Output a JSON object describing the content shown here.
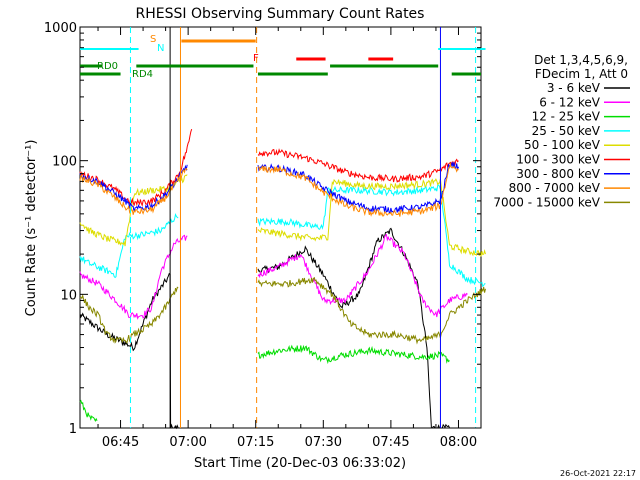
{
  "chart_data": {
    "type": "line",
    "title": "RHESSI Observing Summary Count Rates",
    "xlabel": "Start Time (20-Dec-03 06:33:02)",
    "ylabel": "Count Rate (s⁻¹ detector⁻¹)",
    "y_scale": "log",
    "ylim": [
      1,
      1000
    ],
    "xlim_min": [
      36,
      125
    ],
    "x_ticks": [
      {
        "min": 45,
        "label": "06:45"
      },
      {
        "min": 60,
        "label": "07:00"
      },
      {
        "min": 75,
        "label": "07:15"
      },
      {
        "min": 90,
        "label": "07:30"
      },
      {
        "min": 105,
        "label": "07:45"
      },
      {
        "min": 120,
        "label": "08:00"
      }
    ],
    "y_ticks": [
      {
        "v": 1,
        "label": "1"
      },
      {
        "v": 10,
        "label": "10"
      },
      {
        "v": 100,
        "label": "100"
      },
      {
        "v": 1000,
        "label": "1000"
      }
    ],
    "legend": {
      "header": [
        "Det 1,3,4,5,6,9,",
        "FDecim 1, Att 0"
      ],
      "position": "right"
    },
    "series": [
      {
        "name": "3 - 6 keV",
        "color": "#000000",
        "points": [
          [
            36,
            7
          ],
          [
            42,
            5
          ],
          [
            48,
            4
          ],
          [
            52,
            9
          ],
          [
            56,
            14
          ],
          [
            56.1,
            1
          ],
          [
            58,
            1
          ],
          [
            75.5,
            15
          ],
          [
            80,
            16
          ],
          [
            86,
            22
          ],
          [
            90,
            14
          ],
          [
            94,
            8
          ],
          [
            98,
            10
          ],
          [
            102,
            25
          ],
          [
            105,
            30
          ],
          [
            108,
            20
          ],
          [
            111,
            12
          ],
          [
            113,
            4
          ],
          [
            114,
            1
          ],
          [
            116,
            1
          ],
          [
            118,
            1
          ]
        ]
      },
      {
        "name": "6 - 12 keV",
        "color": "#ff00ff",
        "points": [
          [
            36,
            14
          ],
          [
            40,
            12
          ],
          [
            44,
            9
          ],
          [
            47,
            7
          ],
          [
            50,
            7
          ],
          [
            52,
            8
          ],
          [
            54,
            15
          ],
          [
            57,
            24
          ],
          [
            60,
            27
          ],
          [
            75.5,
            14
          ],
          [
            80,
            16
          ],
          [
            85,
            20
          ],
          [
            90,
            9
          ],
          [
            95,
            9
          ],
          [
            100,
            15
          ],
          [
            104,
            27
          ],
          [
            108,
            20
          ],
          [
            112,
            9
          ],
          [
            115,
            7
          ],
          [
            118,
            9
          ],
          [
            122,
            10
          ]
        ]
      },
      {
        "name": "12 - 25 keV",
        "color": "#00dd00",
        "points": [
          [
            36,
            1.6
          ],
          [
            38,
            1.2
          ],
          [
            40,
            1.1
          ],
          [
            75.5,
            3.5
          ],
          [
            80,
            3.8
          ],
          [
            86,
            4
          ],
          [
            90,
            3.2
          ],
          [
            94,
            3.5
          ],
          [
            100,
            3.8
          ],
          [
            106,
            3.6
          ],
          [
            112,
            3.4
          ],
          [
            116,
            3.5
          ],
          [
            118,
            3.2
          ]
        ]
      },
      {
        "name": "25 - 50 keV",
        "color": "#00ffff",
        "points": [
          [
            36,
            19
          ],
          [
            38,
            17
          ],
          [
            42,
            15
          ],
          [
            44,
            14
          ],
          [
            46,
            27
          ],
          [
            50,
            28
          ],
          [
            54,
            30
          ],
          [
            58,
            40
          ],
          [
            75.5,
            35
          ],
          [
            82,
            35
          ],
          [
            88,
            32
          ],
          [
            90,
            32
          ],
          [
            91,
            60
          ],
          [
            98,
            60
          ],
          [
            106,
            58
          ],
          [
            112,
            60
          ],
          [
            116,
            63
          ],
          [
            118,
            17
          ],
          [
            122,
            13
          ],
          [
            126,
            12
          ]
        ]
      },
      {
        "name": "50 - 100 keV",
        "color": "#dddd00",
        "points": [
          [
            36,
            35
          ],
          [
            38,
            30
          ],
          [
            42,
            26
          ],
          [
            46,
            24
          ],
          [
            48,
            57
          ],
          [
            52,
            60
          ],
          [
            56,
            62
          ],
          [
            60,
            78
          ],
          [
            75.5,
            30
          ],
          [
            82,
            28
          ],
          [
            88,
            26
          ],
          [
            91,
            27
          ],
          [
            92,
            70
          ],
          [
            98,
            65
          ],
          [
            104,
            64
          ],
          [
            110,
            66
          ],
          [
            114,
            68
          ],
          [
            116,
            70
          ],
          [
            118,
            23
          ],
          [
            122,
            21
          ],
          [
            126,
            20
          ]
        ]
      },
      {
        "name": "100 - 300 keV",
        "color": "#ff0000",
        "points": [
          [
            36,
            80
          ],
          [
            40,
            72
          ],
          [
            44,
            60
          ],
          [
            46,
            52
          ],
          [
            48,
            48
          ],
          [
            52,
            50
          ],
          [
            55,
            60
          ],
          [
            58,
            80
          ],
          [
            60,
            130
          ],
          [
            61,
            190
          ],
          [
            75.5,
            115
          ],
          [
            80,
            115
          ],
          [
            86,
            105
          ],
          [
            90,
            95
          ],
          [
            95,
            82
          ],
          [
            100,
            75
          ],
          [
            106,
            73
          ],
          [
            112,
            76
          ],
          [
            116,
            85
          ],
          [
            118,
            95
          ],
          [
            120,
            100
          ]
        ]
      },
      {
        "name": "300 - 800 keV",
        "color": "#0000ff",
        "points": [
          [
            36,
            78
          ],
          [
            40,
            70
          ],
          [
            44,
            56
          ],
          [
            46,
            50
          ],
          [
            48,
            43
          ],
          [
            52,
            46
          ],
          [
            55,
            56
          ],
          [
            58,
            75
          ],
          [
            60,
            95
          ],
          [
            75.5,
            88
          ],
          [
            80,
            88
          ],
          [
            86,
            78
          ],
          [
            90,
            62
          ],
          [
            95,
            50
          ],
          [
            100,
            44
          ],
          [
            106,
            43
          ],
          [
            112,
            45
          ],
          [
            116,
            50
          ],
          [
            118,
            95
          ],
          [
            120,
            90
          ]
        ]
      },
      {
        "name": "800 - 7000 keV",
        "color": "#ff8800",
        "points": [
          [
            36,
            74
          ],
          [
            40,
            66
          ],
          [
            44,
            52
          ],
          [
            46,
            45
          ],
          [
            48,
            41
          ],
          [
            52,
            43
          ],
          [
            55,
            53
          ],
          [
            58,
            72
          ],
          [
            60,
            92
          ],
          [
            75.5,
            86
          ],
          [
            80,
            86
          ],
          [
            86,
            74
          ],
          [
            90,
            58
          ],
          [
            95,
            46
          ],
          [
            100,
            41
          ],
          [
            106,
            40
          ],
          [
            112,
            42
          ],
          [
            116,
            46
          ],
          [
            118,
            92
          ],
          [
            120,
            85
          ]
        ]
      },
      {
        "name": "7000 - 15000 keV",
        "color": "#888800",
        "points": [
          [
            36,
            10
          ],
          [
            38,
            8
          ],
          [
            40,
            7
          ],
          [
            42,
            5
          ],
          [
            44,
            4.5
          ],
          [
            46,
            4.5
          ],
          [
            48,
            5
          ],
          [
            52,
            6
          ],
          [
            55,
            8
          ],
          [
            58,
            12
          ],
          [
            75.5,
            12
          ],
          [
            82,
            12
          ],
          [
            88,
            13
          ],
          [
            92,
            10
          ],
          [
            96,
            6
          ],
          [
            100,
            5
          ],
          [
            106,
            5
          ],
          [
            112,
            4.5
          ],
          [
            116,
            5
          ],
          [
            118,
            7
          ],
          [
            122,
            9
          ],
          [
            126,
            11
          ]
        ]
      }
    ],
    "state_bars": {
      "top_labels": [
        "S",
        "N",
        "F"
      ],
      "rd_labels": [
        "RD0",
        "RD4"
      ]
    },
    "timestamp": "26-Oct-2021 22:17"
  }
}
